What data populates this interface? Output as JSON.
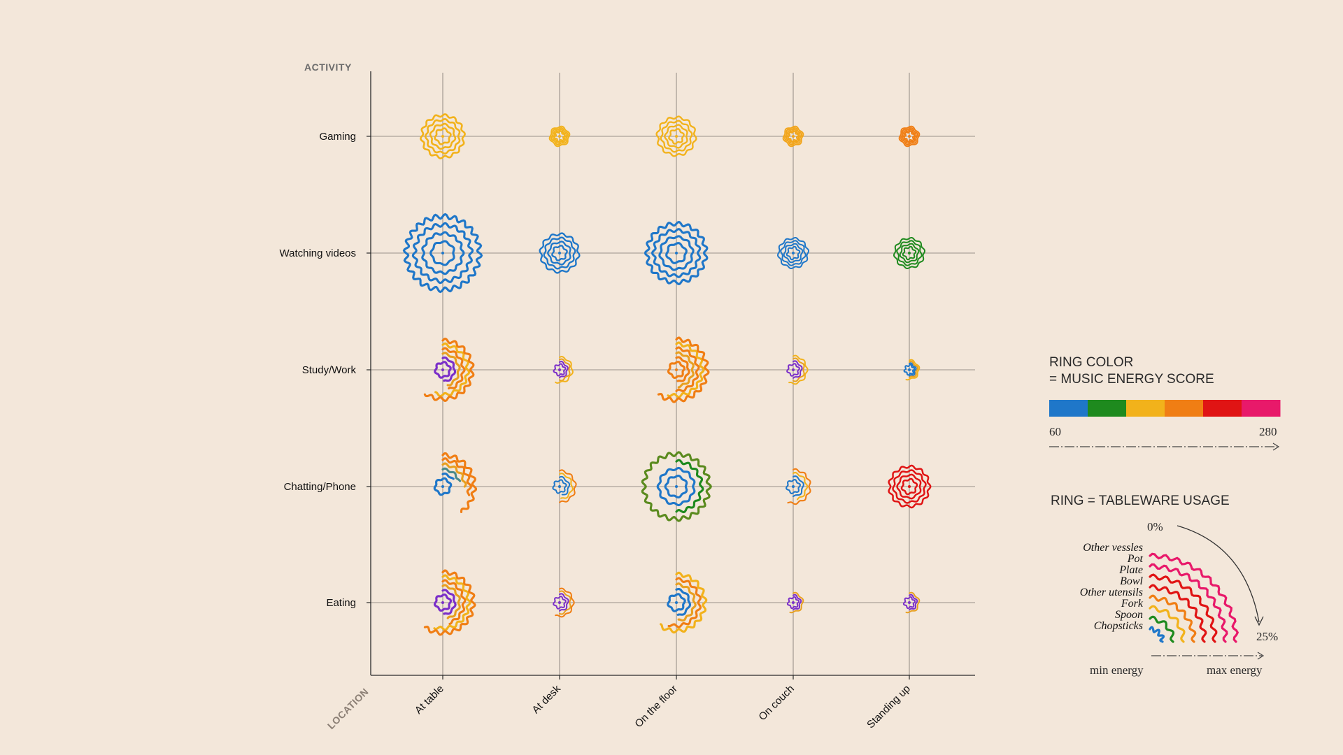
{
  "chart_data": {
    "type": "other",
    "y_axis_title": "ACTIVITY",
    "x_axis_title": "LOCATION",
    "activities": [
      "Gaming",
      "Watching videos",
      "Study/Work",
      "Chatting/Phone",
      "Eating"
    ],
    "locations": [
      "At table",
      "At desk",
      "On the floor",
      "On couch",
      "Standing up"
    ],
    "energy_scale": {
      "min": 60,
      "max": 280,
      "colors": [
        "#1f77c9",
        "#1e8a1e",
        "#f2b21b",
        "#f07e14",
        "#e01414",
        "#e8196a"
      ]
    },
    "tableware": [
      "Chopsticks",
      "Spoon",
      "Fork",
      "Other utensils",
      "Bowl",
      "Plate",
      "Pot",
      "Other vessles"
    ],
    "cells": [
      {
        "activity": "Gaming",
        "location": "At table",
        "color": "#f2b21b",
        "rings": [
          100,
          100,
          100,
          100
        ],
        "size": 1.0
      },
      {
        "activity": "Gaming",
        "location": "At desk",
        "color": "#f2b21b",
        "rings": [
          100,
          100,
          100,
          100
        ],
        "size": 0.45
      },
      {
        "activity": "Gaming",
        "location": "On the floor",
        "color": "#f2b21b",
        "rings": [
          100,
          100,
          100,
          100
        ],
        "size": 0.9
      },
      {
        "activity": "Gaming",
        "location": "On couch",
        "color": "#f2a51b",
        "rings": [
          100,
          100,
          100,
          100
        ],
        "size": 0.45
      },
      {
        "activity": "Gaming",
        "location": "Standing up",
        "color": "#f07e14",
        "rings": [
          100,
          100,
          100,
          100
        ],
        "size": 0.45
      },
      {
        "activity": "Watching videos",
        "location": "At table",
        "color": "#1f77c9",
        "rings": [
          100,
          100,
          100,
          100
        ],
        "size": 1.75
      },
      {
        "activity": "Watching videos",
        "location": "At desk",
        "color": "#1f77c9",
        "rings": [
          100,
          100,
          100,
          100
        ],
        "size": 0.9
      },
      {
        "activity": "Watching videos",
        "location": "On the floor",
        "color": "#1f77c9",
        "rings": [
          100,
          100,
          100,
          100
        ],
        "size": 1.4
      },
      {
        "activity": "Watching videos",
        "location": "On couch",
        "color": "#1f77c9",
        "rings": [
          100,
          100,
          100,
          100
        ],
        "size": 0.7
      },
      {
        "activity": "Watching videos",
        "location": "Standing up",
        "color": "#1e8a1e",
        "rings": [
          100,
          100,
          100,
          100
        ],
        "size": 0.7
      },
      {
        "activity": "Study/Work",
        "location": "At table",
        "colors": [
          "#7b2fc9",
          "#7b2fc9",
          "#e8a020",
          "#f07e14",
          "#f2b21b",
          "#f07e14"
        ],
        "rings": [
          100,
          48,
          45,
          45,
          55,
          60
        ],
        "size": 1.4
      },
      {
        "activity": "Study/Work",
        "location": "At desk",
        "colors": [
          "#7b2fc9",
          "#7b2fc9",
          "#e8a020",
          "#f2b21b"
        ],
        "rings": [
          100,
          50,
          50,
          55
        ],
        "size": 0.6
      },
      {
        "activity": "Study/Work",
        "location": "On the floor",
        "colors": [
          "#f07e14",
          "#f07e14",
          "#e8a020",
          "#f07e14",
          "#f2b21b",
          "#f07e14"
        ],
        "rings": [
          100,
          48,
          48,
          50,
          55,
          60
        ],
        "size": 1.45
      },
      {
        "activity": "Study/Work",
        "location": "On couch",
        "colors": [
          "#7b2fc9",
          "#7b2fc9",
          "#e8a020",
          "#f2b21b"
        ],
        "rings": [
          100,
          50,
          50,
          55
        ],
        "size": 0.65
      },
      {
        "activity": "Study/Work",
        "location": "Standing up",
        "colors": [
          "#1f77c9",
          "#1f77c9",
          "#e8a020",
          "#f2b21b"
        ],
        "rings": [
          100,
          50,
          50,
          55
        ],
        "size": 0.45
      },
      {
        "activity": "Chatting/Phone",
        "location": "At table",
        "colors": [
          "#1f77c9",
          "#1f77c9",
          "#4a8a8a",
          "#e8a020",
          "#f07e14",
          "#f07e14"
        ],
        "rings": [
          100,
          15,
          20,
          25,
          30,
          40
        ],
        "size": 1.5
      },
      {
        "activity": "Chatting/Phone",
        "location": "At desk",
        "colors": [
          "#1f77c9",
          "#1f77c9",
          "#f2b21b",
          "#f07e14"
        ],
        "rings": [
          100,
          45,
          48,
          50
        ],
        "size": 0.75
      },
      {
        "activity": "Chatting/Phone",
        "location": "On the floor",
        "colors": [
          "#1f77c9",
          "#1f77c9",
          "#1e8a1e",
          "#5a8a1e"
        ],
        "rings": [
          100,
          100,
          50,
          100
        ],
        "size": 1.55
      },
      {
        "activity": "Chatting/Phone",
        "location": "On couch",
        "colors": [
          "#1f77c9",
          "#1f77c9",
          "#f2b21b",
          "#f07e14"
        ],
        "rings": [
          100,
          50,
          45,
          55
        ],
        "size": 0.8
      },
      {
        "activity": "Chatting/Phone",
        "location": "Standing up",
        "color": "#e01414",
        "rings": [
          100,
          100,
          100,
          100
        ],
        "size": 0.95
      },
      {
        "activity": "Eating",
        "location": "At table",
        "colors": [
          "#7b2fc9",
          "#7b2fc9",
          "#e8a020",
          "#f07e14",
          "#f2b21b",
          "#f07e14"
        ],
        "rings": [
          100,
          48,
          45,
          45,
          55,
          60
        ],
        "size": 1.45
      },
      {
        "activity": "Eating",
        "location": "At desk",
        "colors": [
          "#7b2fc9",
          "#7b2fc9",
          "#e8a020",
          "#f07e14"
        ],
        "rings": [
          100,
          50,
          50,
          55
        ],
        "size": 0.65
      },
      {
        "activity": "Eating",
        "location": "On the floor",
        "colors": [
          "#1f77c9",
          "#1f77c9",
          "#e8a020",
          "#f07e14",
          "#f2b21b"
        ],
        "rings": [
          100,
          48,
          48,
          55,
          60
        ],
        "size": 1.35
      },
      {
        "activity": "Eating",
        "location": "On couch",
        "colors": [
          "#7b2fc9",
          "#7b2fc9",
          "#e8a020"
        ],
        "rings": [
          100,
          50,
          55
        ],
        "size": 0.45
      },
      {
        "activity": "Eating",
        "location": "Standing up",
        "colors": [
          "#7b2fc9",
          "#7b2fc9",
          "#e8a020"
        ],
        "rings": [
          100,
          50,
          55
        ],
        "size": 0.45
      }
    ]
  },
  "legend": {
    "color_title_1": "RING COLOR",
    "color_title_2": "= MUSIC ENERGY SCORE",
    "min_label": "60",
    "max_label": "280",
    "ring_title": "RING = TABLEWARE USAGE",
    "zero_label": "0%",
    "max_pct_label": "25%",
    "min_energy_label": "min energy",
    "max_energy_label": "max energy"
  }
}
